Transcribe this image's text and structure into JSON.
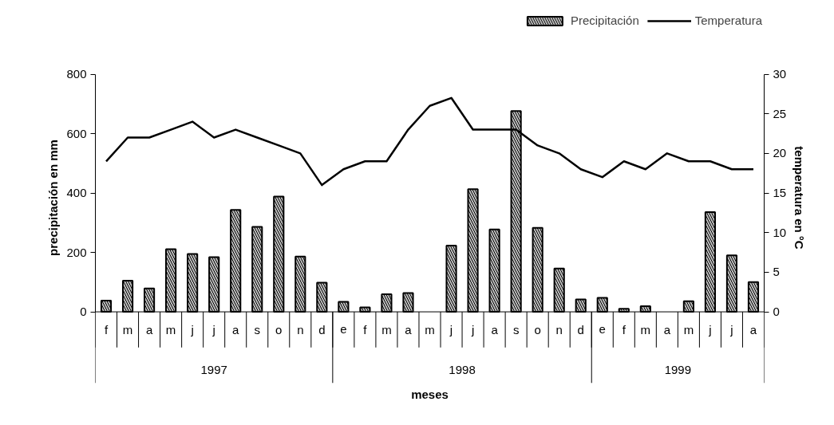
{
  "chart_data": {
    "type": "bar",
    "xlabel": "meses",
    "ylabel": "precipitación en mm",
    "y2label": "temperatura en °C",
    "categories": [
      "f",
      "m",
      "a",
      "m",
      "j",
      "j",
      "a",
      "s",
      "o",
      "n",
      "d",
      "e",
      "f",
      "m",
      "a",
      "m",
      "j",
      "j",
      "a",
      "s",
      "o",
      "n",
      "d",
      "e",
      "f",
      "m",
      "a",
      "m",
      "j",
      "j",
      "a"
    ],
    "series": [
      {
        "name": "Precipitación",
        "color": "#bfbfbf",
        "values": [
          38,
          105,
          79,
          211,
          195,
          184,
          343,
          286,
          388,
          186,
          98,
          34,
          15,
          59,
          63,
          null,
          223,
          413,
          277,
          676,
          283,
          146,
          42,
          47,
          10,
          19,
          null,
          36,
          336,
          190,
          100
        ]
      },
      {
        "name": "Temperatura",
        "type": "line",
        "axis": "y2",
        "color": "#000000",
        "values": [
          19,
          22,
          22,
          23,
          24,
          22,
          23,
          22,
          21,
          20,
          16,
          18,
          19,
          19,
          23,
          26,
          27,
          23,
          23,
          23,
          21,
          20,
          18,
          17,
          19,
          18,
          20,
          19,
          19,
          18,
          18
        ]
      }
    ],
    "annotations": [
      "1997",
      "1998",
      "1999"
    ],
    "ylim": [
      0,
      800
    ],
    "yticks": [
      0,
      200,
      400,
      600,
      800
    ],
    "y2lim": [
      0,
      30
    ],
    "y2ticks": [
      0,
      5,
      10,
      15,
      20,
      25,
      30
    ],
    "grid": false,
    "legend": "top right"
  }
}
